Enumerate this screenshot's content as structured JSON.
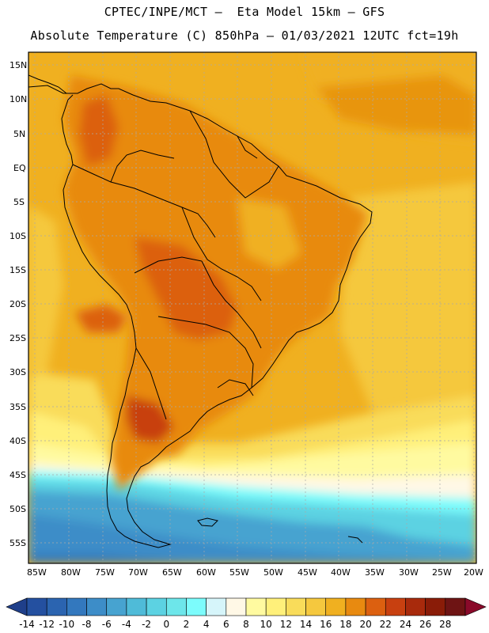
{
  "title_line1": "CPTEC/INPE/MCT –  Eta Model 15km – GFS",
  "title_line2": "Absolute Temperature (C) 850hPa – 01/03/2021 12UTC fct=19h",
  "lat_labels": [
    "15N",
    "10N",
    "5N",
    "EQ",
    "5S",
    "10S",
    "15S",
    "20S",
    "25S",
    "30S",
    "35S",
    "40S",
    "45S",
    "50S",
    "55S"
  ],
  "lon_labels": [
    "85W",
    "80W",
    "75W",
    "70W",
    "65W",
    "60W",
    "55W",
    "50W",
    "45W",
    "40W",
    "35W",
    "30W",
    "25W",
    "20W"
  ],
  "colorbar": {
    "labels": [
      "-14",
      "-12",
      "-10",
      "-8",
      "-6",
      "-4",
      "-2",
      "0",
      "2",
      "4",
      "6",
      "8",
      "10",
      "12",
      "14",
      "16",
      "18",
      "20",
      "22",
      "24",
      "26",
      "28"
    ],
    "colors": [
      "#1f3f8a",
      "#2450a0",
      "#2b64b0",
      "#3378be",
      "#3d8dc8",
      "#47a3d0",
      "#4fbbd8",
      "#5cd2e2",
      "#6de6ea",
      "#7cfcfc",
      "#d6f5fa",
      "#fff8e6",
      "#fffaa0",
      "#fff07a",
      "#f9dc5a",
      "#f5c83e",
      "#f0b020",
      "#e88a10",
      "#dc6010",
      "#c84010",
      "#a82a0c",
      "#8a1c08",
      "#6e1414",
      "#8a0a2a"
    ]
  },
  "colors": {
    "ocean_warm": "#f0b020",
    "land_hot": "#dc7a18",
    "land_very_hot": "#d05a12",
    "ocean_mild": "#f5c83e",
    "ocean_cool_yellow": "#fff07a",
    "pale": "#fffaa0",
    "cold_cyan": "#5cd2e2",
    "cold_blue": "#3d8dc8"
  }
}
